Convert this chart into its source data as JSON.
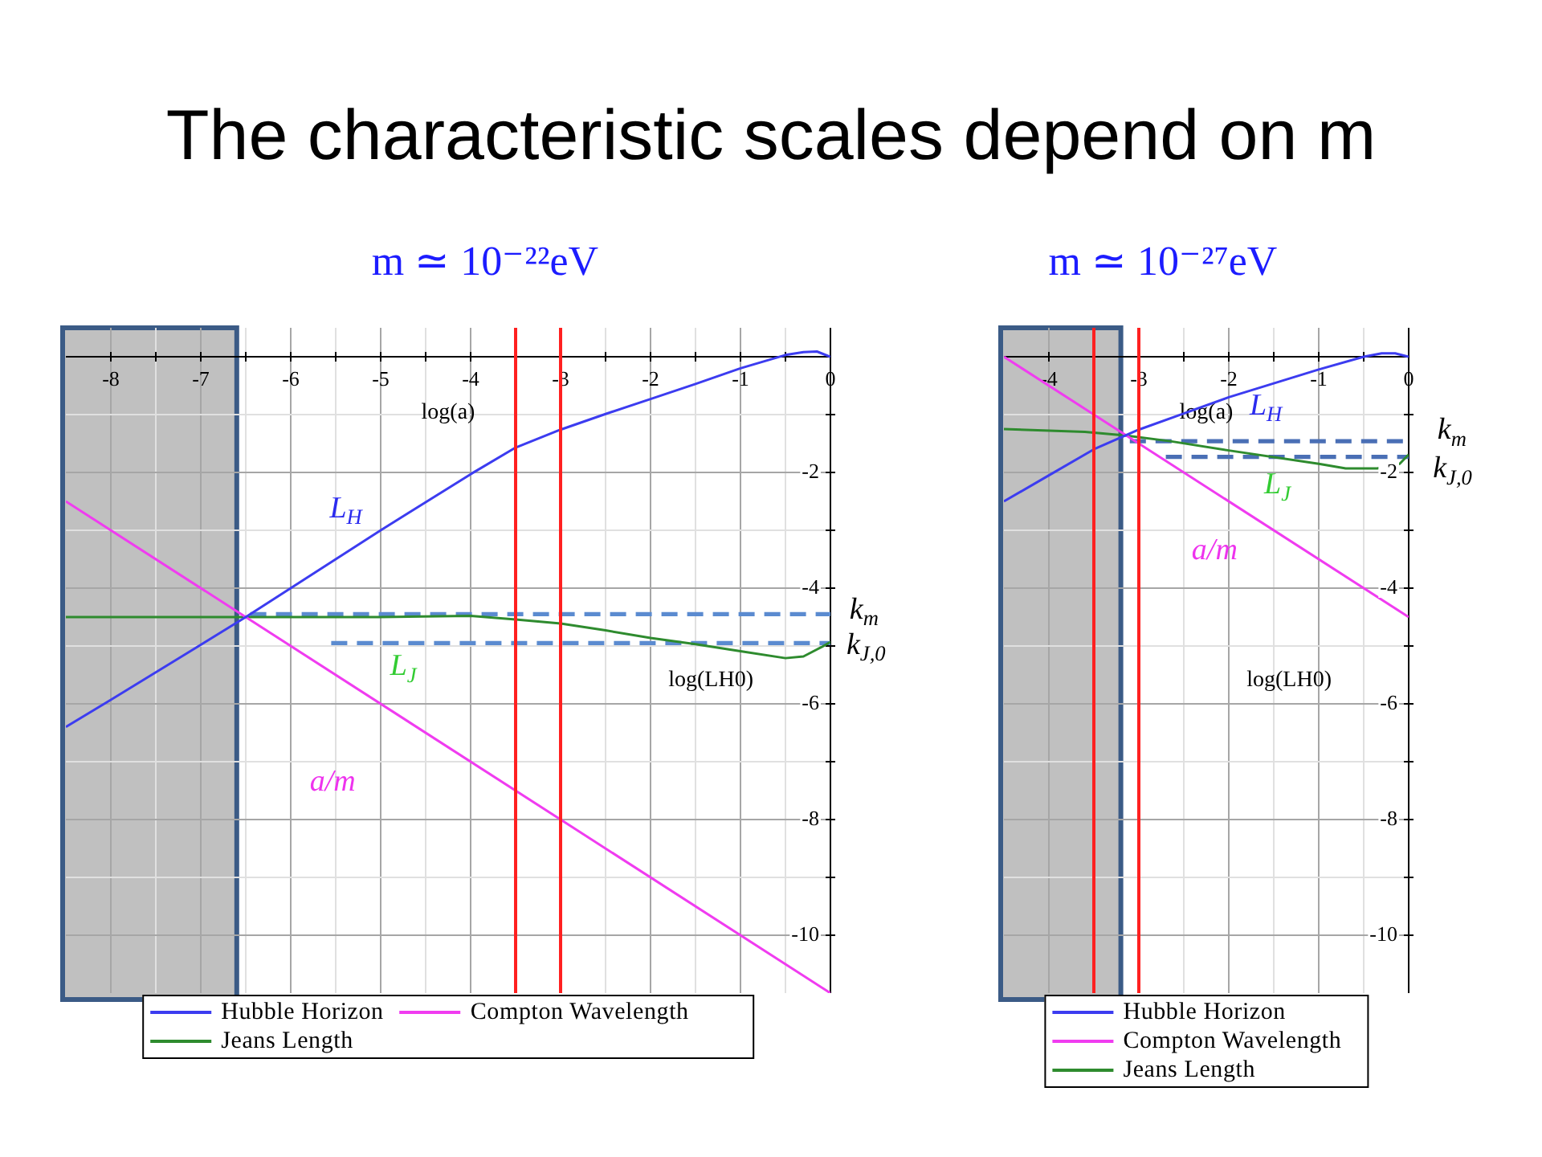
{
  "chart_data": [
    {
      "type": "line",
      "title": "The characteristic scales depend on m",
      "subtitle": "m ≃ 10⁻²²eV",
      "xlabel": "log(a)",
      "ylabel": "log(LH0)",
      "xlim": [
        -8.5,
        0
      ],
      "ylim": [
        -11,
        0.5
      ],
      "xticks": [
        -8,
        {
          "value": -7.5,
          "label": null
        },
        -7,
        {
          "value": -6.5,
          "label": null
        },
        -6,
        {
          "value": -5.5,
          "label": null
        },
        -5,
        {
          "value": -4.5,
          "label": null
        },
        -4,
        {
          "value": -3.5,
          "label": null
        },
        -3,
        {
          "value": -2.5,
          "label": null
        },
        -2,
        {
          "value": -1.5,
          "label": null
        },
        -1,
        {
          "value": -0.5,
          "label": null
        },
        0
      ],
      "yticks": [
        {
          "value": -1,
          "label": null
        },
        -2,
        {
          "value": -3,
          "label": null
        },
        -4,
        {
          "value": -5,
          "label": null
        },
        -6,
        {
          "value": -7,
          "label": null
        },
        -8,
        {
          "value": -9,
          "label": null
        },
        -10
      ],
      "grid": true,
      "legend": "bottom",
      "series": [
        {
          "name": "Hubble Horizon",
          "color": "#3c3cf0",
          "x": [
            -8.5,
            -8,
            -7,
            -6.5,
            -6,
            -5,
            -4,
            -3.5,
            -3,
            -2.5,
            -2,
            -1.5,
            -1,
            -0.5,
            -0.3,
            -0.15,
            0
          ],
          "values": [
            -6.4,
            -5.93,
            -4.98,
            -4.5,
            -4.0,
            -3.0,
            -2.03,
            -1.57,
            -1.26,
            -0.99,
            -0.73,
            -0.47,
            -0.2,
            0.03,
            0.08,
            0.09,
            0
          ]
        },
        {
          "name": "Compton Wavelength",
          "color": "#f03cf0",
          "x": [
            -8.5,
            -6.5,
            0
          ],
          "values": [
            -2.5,
            -4.5,
            -11
          ]
        },
        {
          "name": "Jeans Length",
          "color": "#2e8b2e",
          "x": [
            -8.5,
            -5,
            -4,
            -3.5,
            -3,
            -2.5,
            -2,
            -1.5,
            -1,
            -0.5,
            -0.3,
            -0.1,
            0
          ],
          "values": [
            -4.5,
            -4.5,
            -4.48,
            -4.54,
            -4.61,
            -4.73,
            -4.86,
            -4.97,
            -5.09,
            -5.21,
            -5.18,
            -5.02,
            -4.93
          ]
        },
        {
          "color": "#5b8bd0",
          "line_style": "dashed",
          "x": [
            -6.45,
            0
          ],
          "values": [
            -4.45,
            -4.45
          ]
        },
        {
          "color": "#5b8bd0",
          "line_style": "dashed",
          "x": [
            -5.55,
            0
          ],
          "values": [
            -4.95,
            -4.95
          ]
        }
      ],
      "ref_lines": [
        {
          "axis": "x",
          "value": -3.5,
          "color": "#ff2020"
        },
        {
          "axis": "x",
          "value": -3,
          "color": "#ff2020"
        }
      ],
      "bands": [
        {
          "axis": "x",
          "from": -8.5,
          "to": -6.6,
          "color": "#c0c0c0"
        }
      ],
      "annotations": [
        "L$_{H}$",
        "L$_{J}$",
        "a/m",
        "k$_{m}$",
        "k$_{J,0}$"
      ]
    },
    {
      "type": "line",
      "subtitle": "m ≃ 10⁻²⁷eV",
      "xlabel": "log(a)",
      "ylabel": "log(LH0)",
      "xlim": [
        -4.5,
        0
      ],
      "ylim": [
        -11,
        0.5
      ],
      "xticks": [
        -4,
        {
          "value": -3.5,
          "label": null
        },
        -3,
        {
          "value": -2.5,
          "label": null
        },
        -2,
        {
          "value": -1.5,
          "label": null
        },
        -1,
        {
          "value": -0.5,
          "label": null
        },
        0
      ],
      "yticks": [
        {
          "value": -1,
          "label": null
        },
        -2,
        {
          "value": -3,
          "label": null
        },
        -4,
        {
          "value": -5,
          "label": null
        },
        -6,
        {
          "value": -7,
          "label": null
        },
        -8,
        {
          "value": -9,
          "label": null
        },
        -10
      ],
      "grid": true,
      "legend": "bottom",
      "series": [
        {
          "name": "Hubble Horizon",
          "color": "#3c3cf0",
          "x": [
            -4.5,
            -4,
            -3.5,
            -3,
            -2.5,
            -2,
            -1.5,
            -1,
            -0.5,
            -0.3,
            -0.15,
            0
          ],
          "values": [
            -2.5,
            -2.05,
            -1.6,
            -1.26,
            -0.98,
            -0.7,
            -0.46,
            -0.22,
            0.0,
            0.06,
            0.06,
            0
          ]
        },
        {
          "name": "Compton Wavelength",
          "color": "#f03cf0",
          "x": [
            -4.5,
            0
          ],
          "values": [
            0,
            -4.5
          ]
        },
        {
          "name": "Jeans Length",
          "color": "#2e8b2e",
          "x": [
            -4.5,
            -3.6,
            -3.15,
            -2.65,
            -2,
            -1,
            -0.7,
            -0.35,
            -0.1,
            0
          ],
          "values": [
            -1.25,
            -1.3,
            -1.36,
            -1.46,
            -1.62,
            -1.85,
            -1.93,
            -1.93,
            -1.85,
            -1.69
          ]
        },
        {
          "color": "#4a6fb5",
          "line_style": "dashed",
          "x": [
            -3.1,
            0
          ],
          "values": [
            -1.46,
            -1.46
          ]
        },
        {
          "color": "#4a6fb5",
          "line_style": "dashed",
          "x": [
            -2.7,
            0
          ],
          "values": [
            -1.73,
            -1.73
          ]
        }
      ],
      "ref_lines": [
        {
          "axis": "x",
          "value": -3.5,
          "color": "#ff2020"
        },
        {
          "axis": "x",
          "value": -3,
          "color": "#ff2020"
        }
      ],
      "bands": [
        {
          "axis": "x",
          "from": -4.5,
          "to": -3.2,
          "color": "#c0c0c0"
        }
      ],
      "annotations": [
        "L$_{H}$",
        "L$_{J}$",
        "a/m",
        "k$_{m}$",
        "k$_{J,0}$"
      ]
    }
  ]
}
